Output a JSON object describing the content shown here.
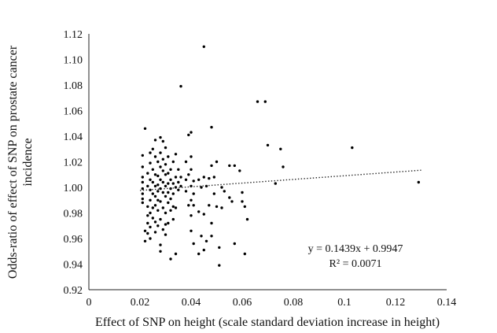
{
  "chart_data": {
    "type": "scatter",
    "title": "",
    "xlabel": "Effect of SNP on height (scale standard deviation increase in height)",
    "ylabel_lines": [
      "Odds-ratio of effect of SNP on prostate cancer",
      "incidence"
    ],
    "xlim": [
      0,
      0.14
    ],
    "ylim": [
      0.92,
      1.12
    ],
    "xticks": [
      "0",
      "0.02",
      "0.04",
      "0.06",
      "0.08",
      "0.1",
      "0.12",
      "0.14"
    ],
    "yticks": [
      "0.92",
      "0.94",
      "0.96",
      "0.98",
      "1.00",
      "1.02",
      "1.04",
      "1.06",
      "1.08",
      "1.10",
      "1.12"
    ],
    "trendline": {
      "slope": 0.1439,
      "intercept": 0.9947,
      "x_range": [
        0.02,
        0.13
      ]
    },
    "equation_text": "y = 0.1439x + 0.9947",
    "r2_text": "R² = 0.0071",
    "grid": false,
    "legend": "none",
    "points": [
      [
        0.022,
        1.046
      ],
      [
        0.021,
        1.025
      ],
      [
        0.021,
        1.016
      ],
      [
        0.021,
        1.008
      ],
      [
        0.021,
        1.004
      ],
      [
        0.021,
        0.999
      ],
      [
        0.021,
        0.995
      ],
      [
        0.021,
        0.991
      ],
      [
        0.021,
        0.988
      ],
      [
        0.022,
        0.966
      ],
      [
        0.022,
        0.958
      ],
      [
        0.023,
        1.011
      ],
      [
        0.023,
        1.001
      ],
      [
        0.023,
        0.985
      ],
      [
        0.023,
        0.978
      ],
      [
        0.023,
        0.972
      ],
      [
        0.023,
        0.964
      ],
      [
        0.024,
        1.027
      ],
      [
        0.024,
        1.019
      ],
      [
        0.024,
        1.006
      ],
      [
        0.024,
        0.998
      ],
      [
        0.024,
        0.99
      ],
      [
        0.024,
        0.98
      ],
      [
        0.024,
        0.969
      ],
      [
        0.024,
        0.96
      ],
      [
        0.025,
        1.03
      ],
      [
        0.025,
        1.014
      ],
      [
        0.025,
        1.004
      ],
      [
        0.025,
        0.995
      ],
      [
        0.025,
        0.984
      ],
      [
        0.025,
        0.976
      ],
      [
        0.026,
        1.037
      ],
      [
        0.026,
        1.024
      ],
      [
        0.026,
        1.01
      ],
      [
        0.026,
        1.001
      ],
      [
        0.026,
        0.993
      ],
      [
        0.026,
        0.986
      ],
      [
        0.026,
        0.973
      ],
      [
        0.026,
        0.965
      ],
      [
        0.027,
        1.02
      ],
      [
        0.027,
        1.009
      ],
      [
        0.027,
        1.002
      ],
      [
        0.027,
        0.997
      ],
      [
        0.027,
        0.99
      ],
      [
        0.027,
        0.982
      ],
      [
        0.027,
        0.97
      ],
      [
        0.028,
        1.039
      ],
      [
        0.028,
        1.027
      ],
      [
        0.028,
        1.016
      ],
      [
        0.028,
        1.006
      ],
      [
        0.028,
        0.999
      ],
      [
        0.028,
        0.989
      ],
      [
        0.028,
        0.975
      ],
      [
        0.028,
        0.955
      ],
      [
        0.028,
        0.95
      ],
      [
        0.029,
        1.036
      ],
      [
        0.029,
        1.022
      ],
      [
        0.029,
        1.013
      ],
      [
        0.029,
        1.004
      ],
      [
        0.029,
        0.996
      ],
      [
        0.029,
        0.984
      ],
      [
        0.029,
        0.967
      ],
      [
        0.03,
        1.031
      ],
      [
        0.03,
        1.018
      ],
      [
        0.03,
        1.01
      ],
      [
        0.03,
        1.001
      ],
      [
        0.03,
        0.993
      ],
      [
        0.03,
        0.98
      ],
      [
        0.03,
        0.971
      ],
      [
        0.03,
        0.963
      ],
      [
        0.031,
        1.024
      ],
      [
        0.031,
        1.011
      ],
      [
        0.031,
        1.003
      ],
      [
        0.031,
        0.996
      ],
      [
        0.031,
        0.988
      ],
      [
        0.031,
        0.972
      ],
      [
        0.032,
        1.014
      ],
      [
        0.032,
        1.006
      ],
      [
        0.032,
        0.999
      ],
      [
        0.032,
        0.991
      ],
      [
        0.032,
        0.982
      ],
      [
        0.032,
        0.944
      ],
      [
        0.033,
        1.02
      ],
      [
        0.033,
        1.003
      ],
      [
        0.033,
        0.995
      ],
      [
        0.033,
        0.985
      ],
      [
        0.033,
        0.975
      ],
      [
        0.034,
        1.026
      ],
      [
        0.034,
        1.008
      ],
      [
        0.034,
        1.0
      ],
      [
        0.034,
        0.984
      ],
      [
        0.034,
        0.948
      ],
      [
        0.035,
        1.014
      ],
      [
        0.035,
        1.004
      ],
      [
        0.035,
        0.998
      ],
      [
        0.036,
        1.008
      ],
      [
        0.036,
        1.001
      ],
      [
        0.036,
        1.079
      ],
      [
        0.038,
        1.02
      ],
      [
        0.038,
        1.006
      ],
      [
        0.038,
        0.997
      ],
      [
        0.039,
        1.01
      ],
      [
        0.039,
        0.986
      ],
      [
        0.039,
        1.041
      ],
      [
        0.04,
        1.043
      ],
      [
        0.04,
        1.024
      ],
      [
        0.04,
        1.014
      ],
      [
        0.04,
        1.001
      ],
      [
        0.04,
        0.99
      ],
      [
        0.04,
        0.978
      ],
      [
        0.04,
        0.966
      ],
      [
        0.041,
        1.005
      ],
      [
        0.041,
        0.995
      ],
      [
        0.041,
        0.986
      ],
      [
        0.041,
        0.956
      ],
      [
        0.043,
        1.006
      ],
      [
        0.043,
        0.981
      ],
      [
        0.043,
        0.948
      ],
      [
        0.044,
        1.0
      ],
      [
        0.044,
        0.962
      ],
      [
        0.045,
        1.11
      ],
      [
        0.045,
        1.008
      ],
      [
        0.045,
        0.979
      ],
      [
        0.045,
        0.951
      ],
      [
        0.046,
        1.001
      ],
      [
        0.046,
        0.958
      ],
      [
        0.047,
        1.007
      ],
      [
        0.047,
        0.986
      ],
      [
        0.048,
        1.047
      ],
      [
        0.048,
        1.017
      ],
      [
        0.048,
        0.972
      ],
      [
        0.048,
        0.962
      ],
      [
        0.049,
        1.008
      ],
      [
        0.049,
        0.995
      ],
      [
        0.05,
        1.02
      ],
      [
        0.05,
        0.985
      ],
      [
        0.051,
        0.953
      ],
      [
        0.051,
        0.939
      ],
      [
        0.052,
        1.0
      ],
      [
        0.052,
        0.984
      ],
      [
        0.053,
        0.997
      ],
      [
        0.055,
        1.017
      ],
      [
        0.055,
        0.992
      ],
      [
        0.056,
        0.989
      ],
      [
        0.057,
        1.017
      ],
      [
        0.057,
        0.956
      ],
      [
        0.059,
        1.013
      ],
      [
        0.06,
        0.996
      ],
      [
        0.06,
        0.989
      ],
      [
        0.061,
        0.985
      ],
      [
        0.061,
        0.948
      ],
      [
        0.062,
        0.975
      ],
      [
        0.066,
        1.067
      ],
      [
        0.069,
        1.067
      ],
      [
        0.07,
        1.033
      ],
      [
        0.073,
        1.003
      ],
      [
        0.075,
        1.03
      ],
      [
        0.076,
        1.016
      ],
      [
        0.103,
        1.031
      ],
      [
        0.129,
        1.004
      ]
    ]
  }
}
